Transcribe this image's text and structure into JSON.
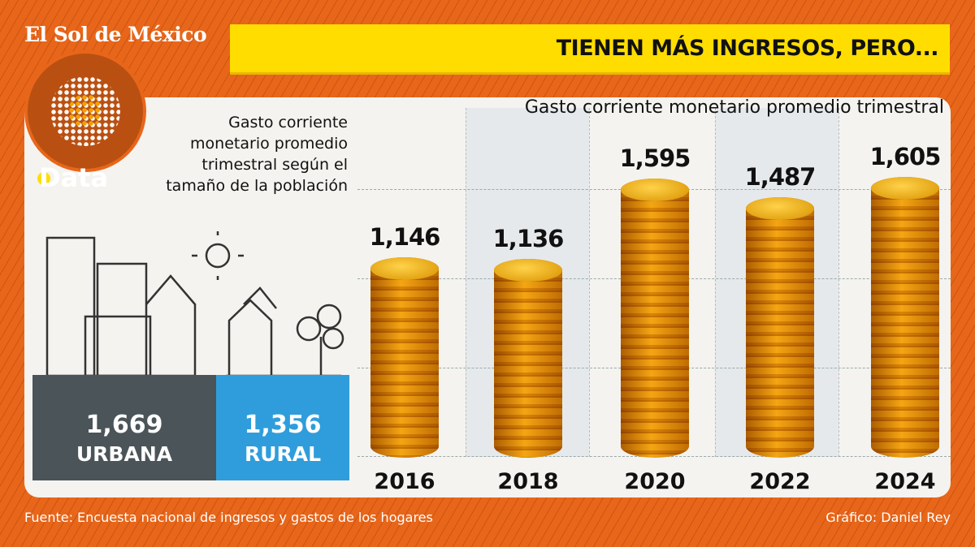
{
  "header": {
    "logo": "El Sol de México",
    "brand": "Data",
    "headline": "TIENEN MÁS INGRESOS, PERO..."
  },
  "left": {
    "subtitle": "Gasto corriente monetario promedio trimestral según el tamaño de la población",
    "urban": {
      "value": "1,669",
      "label": "URBANA"
    },
    "rural": {
      "value": "1,356",
      "label": "RURAL"
    }
  },
  "chart_data": {
    "type": "bar",
    "title": "Gasto corriente monetario promedio trimestral",
    "categories": [
      "2016",
      "2018",
      "2020",
      "2022",
      "2024"
    ],
    "values": [
      1146,
      1136,
      1595,
      1487,
      1605
    ],
    "labels": [
      "1,146",
      "1,136",
      "1,595",
      "1,487",
      "1,605"
    ],
    "ylim": [
      0,
      1605
    ],
    "grid": true,
    "bar_style": "coin stacks",
    "bar_color": "#f2b51c"
  },
  "footer": {
    "source": "Fuente: Encuesta nacional de ingresos y gastos de los hogares",
    "credit": "Gráfico: Daniel Rey"
  }
}
